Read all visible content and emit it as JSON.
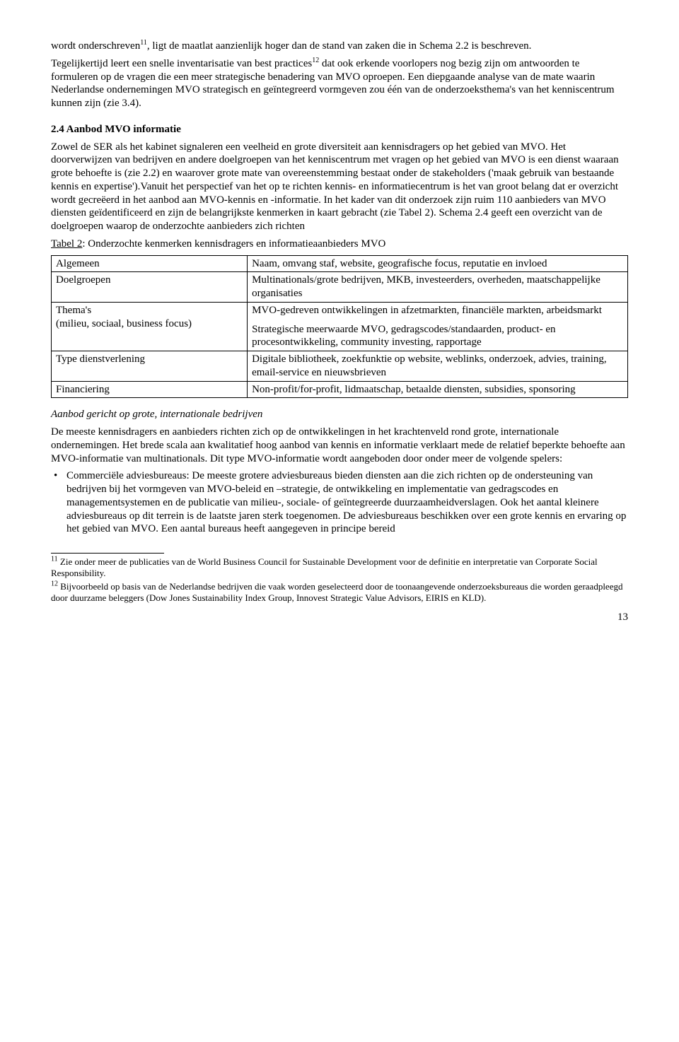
{
  "para1_a": "wordt onderschreven",
  "para1_sup": "11",
  "para1_b": ", ligt de maatlat aanzienlijk hoger dan de stand van zaken die in Schema 2.2 is beschreven.",
  "para2_a": "Tegelijkertijd leert een snelle inventarisatie van best practices",
  "para2_sup": "12",
  "para2_b": " dat ook erkende voorlopers nog bezig zijn om antwoorden te formuleren op de vragen die een meer strategische benadering van MVO oproepen. Een diepgaande analyse van de mate waarin Nederlandse ondernemingen MVO strategisch en geïntegreerd vormgeven zou één van de onderzoeksthema's van het kenniscentrum kunnen zijn (zie 3.4).",
  "heading_24": "2.4 Aanbod MVO informatie",
  "para3": "Zowel de SER als het kabinet signaleren een veelheid en grote diversiteit aan kennisdragers op het gebied van MVO. Het doorverwijzen van bedrijven en andere doelgroepen van het kenniscentrum met vragen op het gebied van MVO is een dienst waaraan grote behoefte is (zie 2.2) en waarover grote mate van overeenstemming bestaat onder de stakeholders ('maak gebruik van bestaande kennis en expertise').Vanuit het perspectief van het op te richten kennis- en informatiecentrum is het van groot belang dat er overzicht wordt gecreëerd in het aanbod aan MVO-kennis en -informatie. In het kader van dit onderzoek zijn ruim 110 aanbieders van MVO diensten geïdentificeerd en zijn de belangrijkste kenmerken in kaart gebracht (zie Tabel 2). Schema 2.4 geeft een overzicht van de doelgroepen waarop de onderzochte aanbieders zich richten",
  "table_caption_a": "Tabel 2",
  "table_caption_b": ": Onderzochte kenmerken kennisdragers en informatieaanbieders MVO",
  "table": {
    "border_color": "#000000",
    "rows": [
      {
        "left": "Algemeen",
        "left_sub": "",
        "right": "Naam, omvang staf, website, geografische focus, reputatie en invloed"
      },
      {
        "left": "Doelgroepen",
        "left_sub": "",
        "right": "Multinationals/grote bedrijven, MKB, investeerders, overheden, maatschappelijke organisaties"
      },
      {
        "left": "Thema's",
        "left_sub": "(milieu, sociaal, business focus)",
        "right": "MVO-gedreven ontwikkelingen in afzetmarkten, financiële markten, arbeidsmarkt\nStrategische meerwaarde MVO, gedragscodes/standaarden, product- en procesontwikkeling, community investing, rapportage"
      },
      {
        "left": "Type dienstverlening",
        "left_sub": "",
        "right": "Digitale bibliotheek, zoekfunktie op website, weblinks, onderzoek, advies, training, email-service en nieuwsbrieven"
      },
      {
        "left": "Financiering",
        "left_sub": "",
        "right": "Non-profit/for-profit, lidmaatschap, betaalde diensten, subsidies, sponsoring"
      }
    ]
  },
  "subhead_italic": "Aanbod gericht op grote, internationale bedrijven",
  "para4": "De meeste kennisdragers en aanbieders richten zich op de ontwikkelingen in het krachtenveld rond grote, internationale ondernemingen. Het brede scala aan kwalitatief hoog aanbod van kennis en informatie verklaart mede de relatief beperkte behoefte aan MVO-informatie van multinationals. Dit type MVO-informatie wordt aangeboden door onder meer de volgende spelers:",
  "bullet1": "Commerciële adviesbureaus: De meeste grotere adviesbureaus bieden diensten aan die zich richten op de ondersteuning van bedrijven bij het vormgeven van MVO-beleid en –strategie, de ontwikkeling en implementatie van gedragscodes en managementsystemen en de publicatie van milieu-, sociale- of geïntegreerde duurzaamheidverslagen. Ook het aantal kleinere adviesbureaus op dit terrein is de laatste jaren sterk toegenomen. De adviesbureaus beschikken over een grote kennis en ervaring op het gebied van MVO. Een aantal bureaus heeft aangegeven in principe bereid",
  "footnote11_sup": "11",
  "footnote11": " Zie onder meer de publicaties van de World Business Council for Sustainable Development voor de definitie en interpretatie van Corporate Social Responsibility.",
  "footnote12_sup": "12",
  "footnote12": " Bijvoorbeeld op basis van de Nederlandse bedrijven die vaak worden geselecteerd door de toonaangevende onderzoeksbureaus die worden geraadpleegd door duurzame beleggers (Dow Jones Sustainability Index Group, Innovest Strategic Value Advisors, EIRIS en KLD).",
  "page_number": "13"
}
